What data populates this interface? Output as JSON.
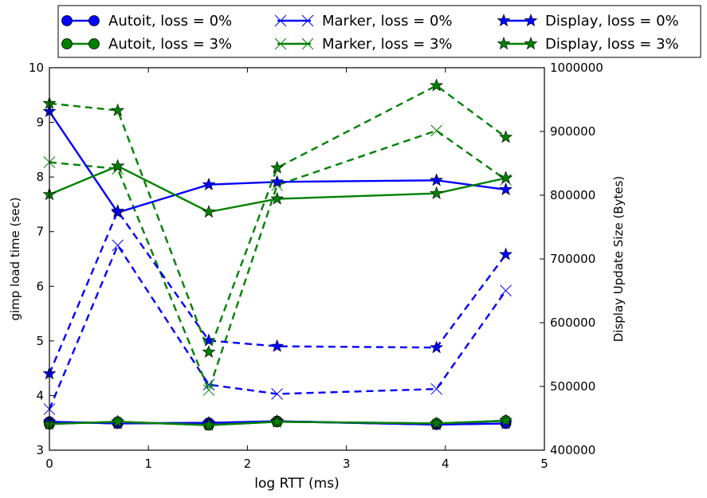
{
  "chart_data": {
    "type": "line",
    "xlabel": "log RTT (ms)",
    "ylabel_left": "gimp load time (sec)",
    "ylabel_right": "Display Update Size (Bytes)",
    "xlim": [
      0,
      5
    ],
    "ylim_left": [
      3,
      10
    ],
    "ylim_right": [
      400000,
      1000000
    ],
    "x_ticks": [
      "0",
      "1",
      "2",
      "3",
      "4",
      "5"
    ],
    "y_left_ticks": [
      "3",
      "4",
      "5",
      "6",
      "7",
      "8",
      "9",
      "10"
    ],
    "y_right_ticks": [
      "400000",
      "500000",
      "600000",
      "700000",
      "800000",
      "900000",
      "1000000"
    ],
    "grid": false,
    "legend_placement": "top, outside, 3 columns",
    "x": [
      0,
      0.69,
      1.61,
      2.3,
      3.91,
      4.61
    ],
    "series": [
      {
        "name": "Autoit, loss = 0%",
        "axis": "left",
        "color": "#0000ff",
        "dash": "solid",
        "marker": "circle",
        "values": [
          3.52,
          3.49,
          3.5,
          3.53,
          3.47,
          3.49
        ]
      },
      {
        "name": "Autoit, loss = 3%",
        "axis": "left",
        "color": "#008000",
        "dash": "solid",
        "marker": "circle",
        "values": [
          3.48,
          3.52,
          3.46,
          3.52,
          3.49,
          3.54
        ]
      },
      {
        "name": "Marker, loss = 0%",
        "axis": "left",
        "color": "#0000ff",
        "dash": "dashed",
        "marker": "x",
        "values": [
          3.75,
          6.75,
          4.2,
          4.03,
          4.12,
          5.92
        ]
      },
      {
        "name": "Marker, loss = 3%",
        "axis": "left",
        "color": "#008000",
        "dash": "dashed",
        "marker": "x",
        "values": [
          8.27,
          8.15,
          4.1,
          7.85,
          8.85,
          7.95
        ]
      },
      {
        "name": "Display, loss = 0%",
        "axis": "left",
        "color": "#0000ff",
        "dash": "solid",
        "marker": "star",
        "values": [
          9.2,
          7.35,
          7.86,
          7.91,
          7.94,
          7.77
        ]
      },
      {
        "name": "Display, loss = 3%",
        "axis": "left",
        "color": "#008000",
        "dash": "solid",
        "marker": "star",
        "values": [
          7.68,
          8.2,
          7.36,
          7.6,
          7.7,
          7.98
        ]
      },
      {
        "name": "",
        "axis": "right",
        "color": "#0000ff",
        "dash": "dashed",
        "marker": "star",
        "values": [
          520000,
          775000,
          572000,
          563000,
          561000,
          707000
        ]
      },
      {
        "name": "",
        "axis": "right",
        "color": "#008000",
        "dash": "dashed",
        "marker": "star",
        "values": [
          944000,
          933000,
          554000,
          843000,
          972000,
          891000
        ]
      },
      {
        "name": "",
        "axis": "right",
        "color": "#008000",
        "dash": "solid",
        "marker": "star",
        "values": [
          null,
          null,
          null,
          null,
          null,
          827000
        ]
      },
      {
        "name": "",
        "axis": "left",
        "color": "#0000ff",
        "dash": "solid",
        "marker": "star",
        "values": [
          3.52,
          3.49,
          3.5,
          3.53,
          3.47,
          3.49
        ]
      },
      {
        "name": "",
        "axis": "left",
        "color": "#008000",
        "dash": "solid",
        "marker": "star",
        "values": [
          3.48,
          3.52,
          3.46,
          3.52,
          3.49,
          3.54
        ]
      }
    ],
    "legend": [
      {
        "label": "Autoit, loss = 0%",
        "color": "#0000ff",
        "marker": "circle"
      },
      {
        "label": "Autoit, loss = 3%",
        "color": "#008000",
        "marker": "circle"
      },
      {
        "label": "Marker, loss = 0%",
        "color": "#0000ff",
        "marker": "x"
      },
      {
        "label": "Marker, loss = 3%",
        "color": "#008000",
        "marker": "x"
      },
      {
        "label": "Display, loss = 0%",
        "color": "#0000ff",
        "marker": "star"
      },
      {
        "label": "Display, loss = 3%",
        "color": "#008000",
        "marker": "star"
      }
    ]
  }
}
